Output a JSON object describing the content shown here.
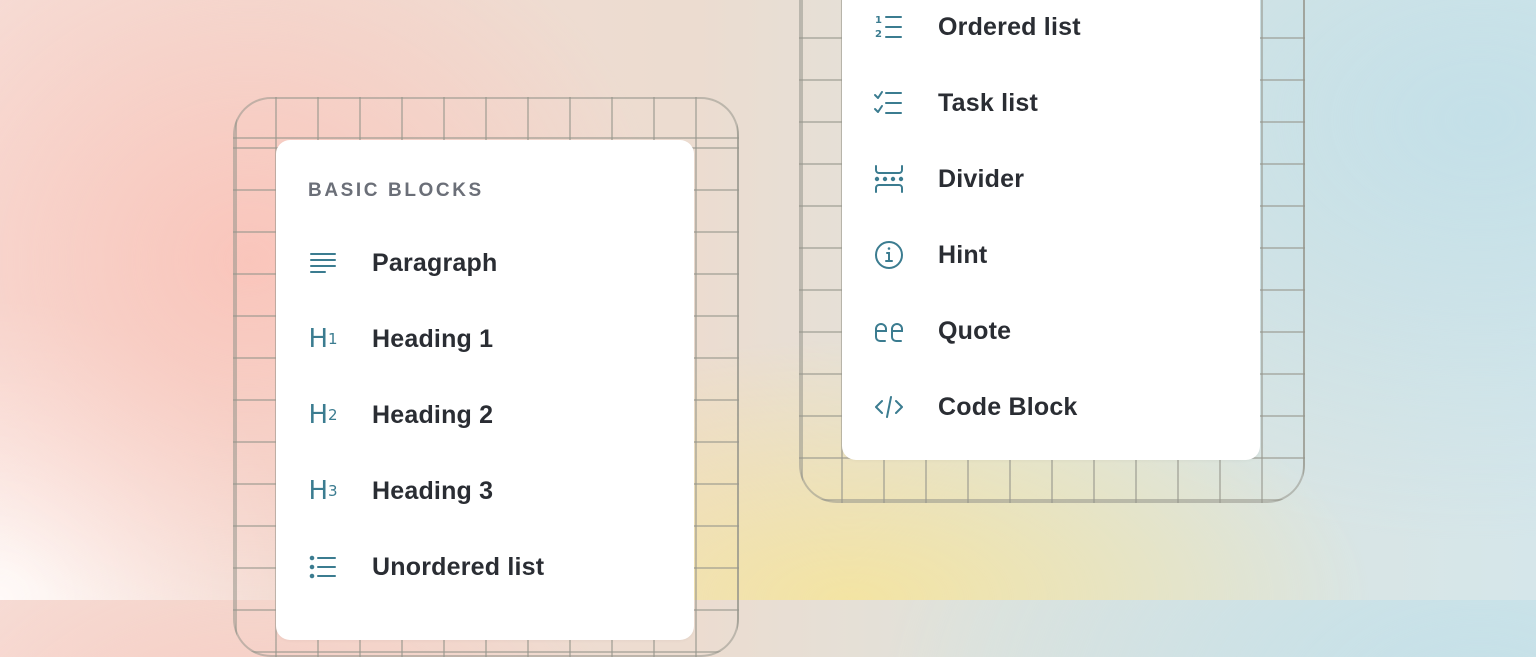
{
  "colors": {
    "accent": "#3b7c90",
    "text": "#2a2d33",
    "muted": "#6b6f78"
  },
  "left_menu": {
    "header": "BASIC BLOCKS",
    "items": [
      {
        "label": "Paragraph",
        "icon": "paragraph-icon"
      },
      {
        "label": "Heading 1",
        "icon": "heading-1-icon",
        "sub": "1"
      },
      {
        "label": "Heading 2",
        "icon": "heading-2-icon",
        "sub": "2"
      },
      {
        "label": "Heading 3",
        "icon": "heading-3-icon",
        "sub": "3"
      },
      {
        "label": "Unordered list",
        "icon": "unordered-list-icon"
      }
    ]
  },
  "right_menu": {
    "items": [
      {
        "label": "Ordered list",
        "icon": "ordered-list-icon"
      },
      {
        "label": "Task list",
        "icon": "task-list-icon"
      },
      {
        "label": "Divider",
        "icon": "divider-icon"
      },
      {
        "label": "Hint",
        "icon": "info-icon"
      },
      {
        "label": "Quote",
        "icon": "quote-icon"
      },
      {
        "label": "Code Block",
        "icon": "code-icon"
      }
    ]
  },
  "heading_icon_letter": "H"
}
